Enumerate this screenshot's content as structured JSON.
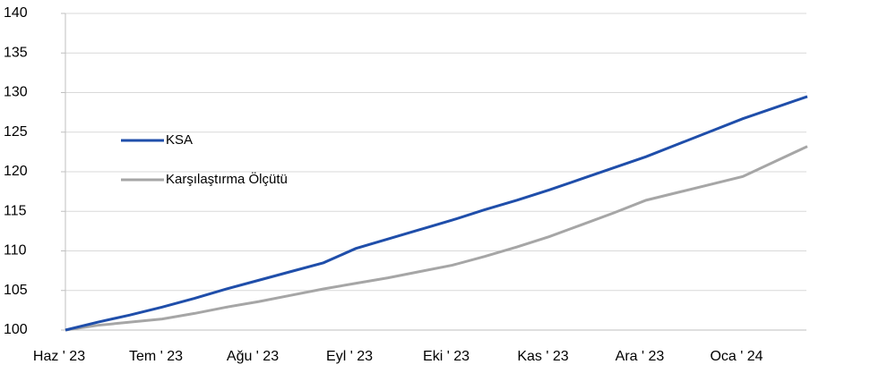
{
  "chart_data": {
    "type": "line",
    "categories": [
      "Haz ' 23",
      null,
      null,
      "Tem ' 23",
      null,
      null,
      "Ağu ' 23",
      null,
      null,
      "Eyl ' 23",
      null,
      null,
      "Eki ' 23",
      null,
      null,
      "Kas ' 23",
      null,
      null,
      "Ara ' 23",
      null,
      null,
      "Oca ' 24",
      null,
      null
    ],
    "series": [
      {
        "name": "KSA",
        "color": "#1f4eaa",
        "values": [
          100,
          101.0,
          101.9,
          102.9,
          104.0,
          105.2,
          106.3,
          107.4,
          108.5,
          110.3,
          111.5,
          112.7,
          113.9,
          115.2,
          116.4,
          117.7,
          119.1,
          120.5,
          121.9,
          123.5,
          125.1,
          126.7,
          128.1,
          129.5
        ]
      },
      {
        "name": "Karşılaştırma Ölçütü",
        "color": "#a6a6a6",
        "values": [
          100,
          100.6,
          101.0,
          101.4,
          102.1,
          102.9,
          103.6,
          104.4,
          105.2,
          105.9,
          106.6,
          107.4,
          108.2,
          109.3,
          110.5,
          111.8,
          113.3,
          114.8,
          116.4,
          117.4,
          118.4,
          119.4,
          121.3,
          123.2
        ]
      }
    ],
    "ylim": [
      100,
      140
    ],
    "yticks": [
      100,
      105,
      110,
      115,
      120,
      125,
      130,
      135,
      140
    ],
    "grid": true
  }
}
